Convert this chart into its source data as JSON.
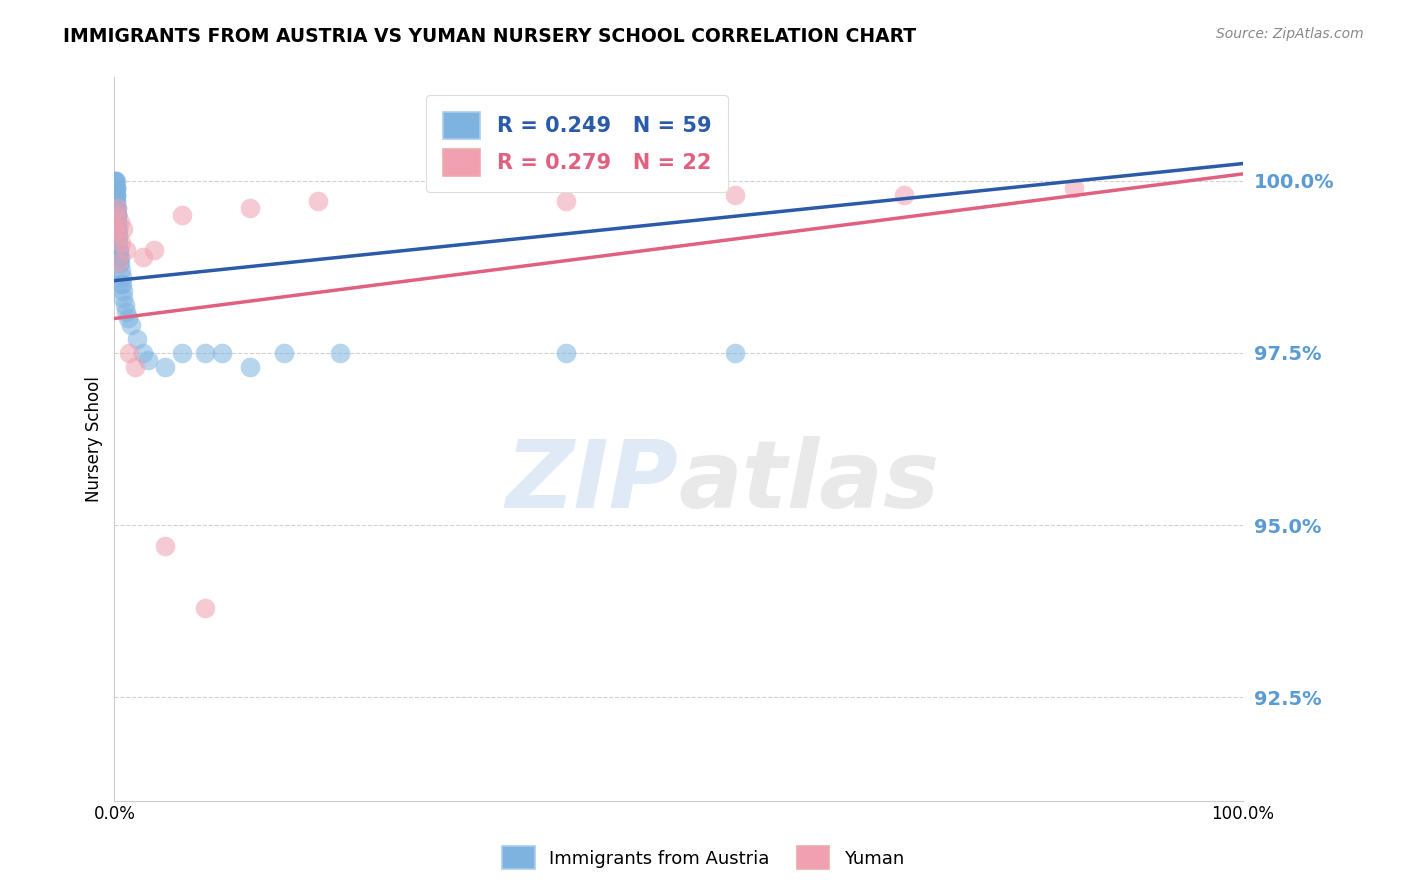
{
  "title": "IMMIGRANTS FROM AUSTRIA VS YUMAN NURSERY SCHOOL CORRELATION CHART",
  "source": "Source: ZipAtlas.com",
  "ylabel": "Nursery School",
  "ytick_values": [
    92.5,
    95.0,
    97.5,
    100.0
  ],
  "xlim": [
    0.0,
    100.0
  ],
  "ylim": [
    91.0,
    101.5
  ],
  "blue_R": 0.249,
  "blue_N": 59,
  "pink_R": 0.279,
  "pink_N": 22,
  "legend_label_blue": "Immigrants from Austria",
  "legend_label_pink": "Yuman",
  "blue_color": "#7eb3e0",
  "pink_color": "#f0a0b0",
  "blue_line_color": "#2a5aa8",
  "pink_line_color": "#e06080",
  "blue_trend_x": [
    0,
    100
  ],
  "blue_trend_y": [
    98.55,
    100.25
  ],
  "pink_trend_x": [
    0,
    100
  ],
  "pink_trend_y": [
    98.0,
    100.1
  ],
  "watermark_zip": "ZIP",
  "watermark_atlas": "atlas",
  "background_color": "#ffffff",
  "tick_color": "#5b9bd5",
  "grid_color": "#cccccc",
  "blue_scatter_x": [
    0.05,
    0.07,
    0.08,
    0.09,
    0.1,
    0.1,
    0.11,
    0.12,
    0.13,
    0.14,
    0.15,
    0.15,
    0.16,
    0.17,
    0.18,
    0.19,
    0.2,
    0.2,
    0.21,
    0.22,
    0.23,
    0.24,
    0.25,
    0.26,
    0.27,
    0.28,
    0.29,
    0.3,
    0.3,
    0.32,
    0.35,
    0.38,
    0.4,
    0.42,
    0.45,
    0.48,
    0.5,
    0.55,
    0.6,
    0.65,
    0.7,
    0.75,
    0.8,
    0.9,
    1.0,
    1.2,
    1.5,
    2.0,
    2.5,
    3.0,
    4.5,
    6.0,
    8.0,
    9.5,
    12.0,
    15.0,
    20.0,
    40.0,
    55.0
  ],
  "blue_scatter_y": [
    100.0,
    100.0,
    99.9,
    100.0,
    99.9,
    100.0,
    99.8,
    99.9,
    99.8,
    99.9,
    99.8,
    99.7,
    99.6,
    99.7,
    99.6,
    99.5,
    99.5,
    99.6,
    99.5,
    99.4,
    99.4,
    99.5,
    99.3,
    99.4,
    99.3,
    99.2,
    99.3,
    99.1,
    99.2,
    99.1,
    99.0,
    99.0,
    98.9,
    99.0,
    98.8,
    98.9,
    98.8,
    98.7,
    98.5,
    98.6,
    98.5,
    98.4,
    98.3,
    98.2,
    98.1,
    98.0,
    97.9,
    97.7,
    97.5,
    97.4,
    97.3,
    97.5,
    97.5,
    97.5,
    97.3,
    97.5,
    97.5,
    97.5,
    97.5
  ],
  "pink_scatter_x": [
    0.08,
    0.12,
    0.2,
    0.22,
    0.35,
    0.5,
    0.6,
    0.8,
    1.0,
    1.3,
    1.8,
    2.5,
    3.5,
    4.5,
    6.0,
    8.0,
    12.0,
    18.0,
    40.0,
    55.0,
    70.0,
    85.0
  ],
  "pink_scatter_y": [
    99.3,
    99.5,
    99.6,
    99.2,
    98.8,
    99.4,
    99.1,
    99.3,
    99.0,
    97.5,
    97.3,
    98.9,
    99.0,
    94.7,
    99.5,
    93.8,
    99.6,
    99.7,
    99.7,
    99.8,
    99.8,
    99.9
  ]
}
